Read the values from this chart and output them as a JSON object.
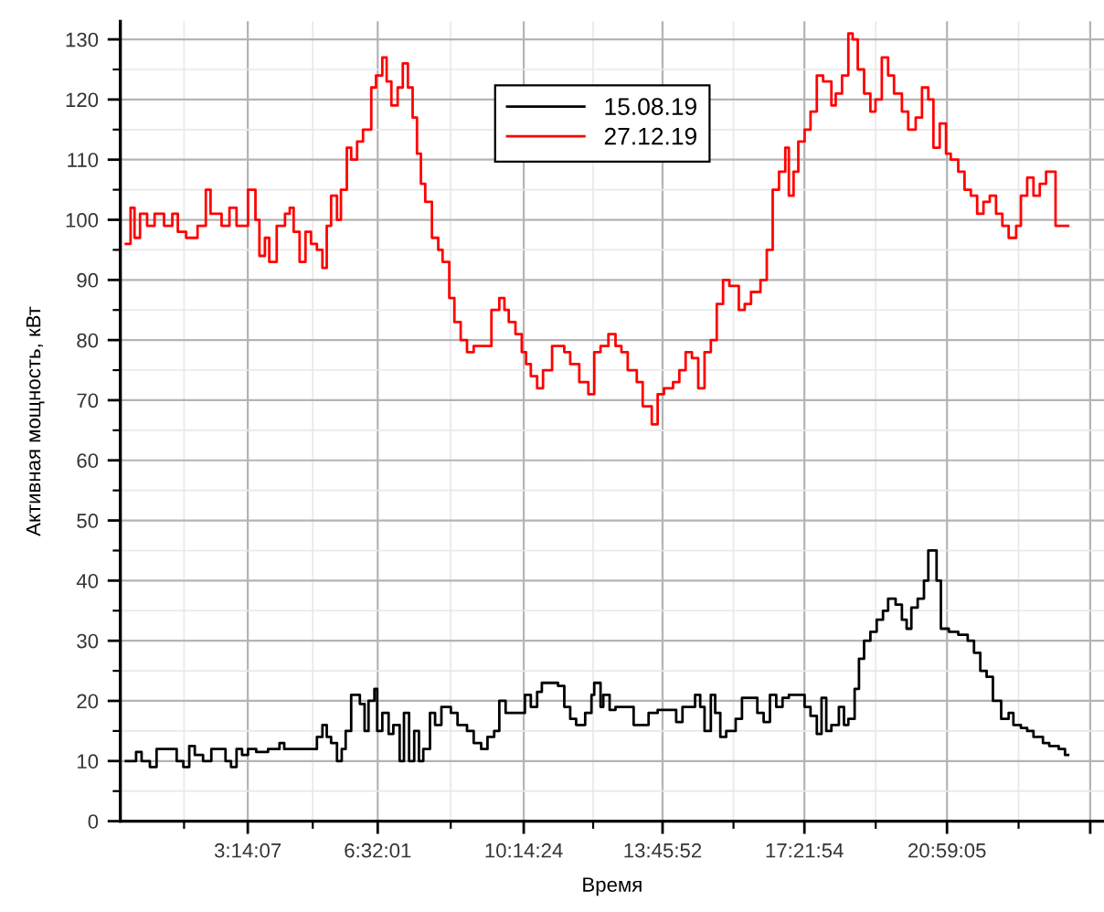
{
  "chart_data": {
    "type": "step",
    "xlabel": "Время",
    "ylabel": "Активная мощность, кВт",
    "xlim": [
      0,
      24.97
    ],
    "ylim": [
      0,
      133
    ],
    "xticks": [
      {
        "value": 3.2353,
        "label": "3:14:07"
      },
      {
        "value": 6.5336,
        "label": "6:32:01"
      },
      {
        "value": 10.24,
        "label": "10:14:24"
      },
      {
        "value": 13.7644,
        "label": "13:45:52"
      },
      {
        "value": 17.365,
        "label": "17:21:54"
      },
      {
        "value": 20.9847,
        "label": "20:59:05"
      },
      {
        "value": 24.62,
        "label": null
      }
    ],
    "yticks": [
      0,
      10,
      20,
      30,
      40,
      50,
      60,
      70,
      80,
      90,
      100,
      110,
      120,
      130
    ],
    "grid": true,
    "legend": "top",
    "series": [
      {
        "name": "15.08.19",
        "color": "#000000",
        "x": [
          0.14,
          0.4,
          0.54,
          0.75,
          0.92,
          1.43,
          1.6,
          1.75,
          1.89,
          2.1,
          2.31,
          2.67,
          2.81,
          2.95,
          3.09,
          3.24,
          3.45,
          3.75,
          4.04,
          4.16,
          4.99,
          5.13,
          5.24,
          5.35,
          5.5,
          5.62,
          5.72,
          5.86,
          6.08,
          6.2,
          6.3,
          6.45,
          6.52,
          6.65,
          6.81,
          6.93,
          7.09,
          7.2,
          7.33,
          7.46,
          7.58,
          7.69,
          7.86,
          7.99,
          8.15,
          8.39,
          8.56,
          8.8,
          8.97,
          9.16,
          9.32,
          9.49,
          9.62,
          9.78,
          10.27,
          10.42,
          10.58,
          10.7,
          11.11,
          11.27,
          11.42,
          11.57,
          11.8,
          11.96,
          12.03,
          12.19,
          12.26,
          12.42,
          12.57,
          13.03,
          13.41,
          13.64,
          14.11,
          14.27,
          14.59,
          14.72,
          14.83,
          14.99,
          15.1,
          15.23,
          15.38,
          15.62,
          15.78,
          16.17,
          16.33,
          16.49,
          16.65,
          16.81,
          16.97,
          17.37,
          17.52,
          17.68,
          17.8,
          17.92,
          18.05,
          18.24,
          18.37,
          18.48,
          18.64,
          18.75,
          18.88,
          19.04,
          19.2,
          19.36,
          19.49,
          19.68,
          19.84,
          19.96,
          20.08,
          20.24,
          20.4,
          20.51,
          20.72,
          20.83,
          21.03,
          21.27,
          21.51,
          21.67,
          21.83,
          21.99,
          22.15,
          22.36,
          22.55,
          22.67,
          22.86,
          23.02,
          23.18,
          23.42,
          23.58,
          23.82,
          23.98,
          24.06
        ],
        "values": [
          10,
          11.5,
          10,
          9,
          12,
          10,
          9,
          12.5,
          11,
          10,
          12,
          10,
          9,
          12,
          11,
          12,
          11.5,
          12,
          13,
          12,
          14,
          16,
          14,
          13,
          10,
          12,
          15,
          21,
          19.5,
          15,
          20,
          22,
          15,
          18,
          14.5,
          16,
          10,
          18,
          10,
          15,
          10,
          12,
          18,
          16,
          19,
          18,
          16,
          15,
          13,
          12,
          14,
          15,
          20,
          18,
          21,
          19,
          21.5,
          23,
          22.5,
          19,
          17,
          16,
          18,
          21,
          23,
          19,
          21,
          18.5,
          19,
          16,
          18,
          18.5,
          16.5,
          19,
          21,
          19,
          15,
          21,
          18,
          14,
          15,
          17,
          20.5,
          18,
          16.5,
          21,
          19,
          20.5,
          21,
          19,
          17.5,
          14.5,
          20.5,
          15,
          16,
          19,
          16,
          17,
          22,
          27,
          30,
          31.5,
          33.5,
          35,
          37,
          36,
          33.5,
          32,
          35.5,
          37,
          40,
          45,
          40,
          32,
          31.5,
          31,
          30,
          28,
          25,
          24,
          20,
          17,
          18,
          16,
          15.5,
          15,
          14,
          13,
          12.5,
          12,
          11,
          11
        ]
      },
      {
        "name": "27.12.19",
        "color": "#ff0000",
        "x": [
          0.14,
          0.26,
          0.36,
          0.5,
          0.68,
          0.87,
          1.11,
          1.32,
          1.46,
          1.67,
          1.96,
          2.17,
          2.29,
          2.57,
          2.77,
          2.95,
          3.24,
          3.43,
          3.53,
          3.67,
          3.78,
          3.97,
          4.18,
          4.3,
          4.4,
          4.55,
          4.7,
          4.84,
          4.99,
          5.13,
          5.24,
          5.35,
          5.5,
          5.6,
          5.75,
          5.86,
          6.01,
          6.16,
          6.37,
          6.49,
          6.65,
          6.76,
          6.88,
          7.04,
          7.17,
          7.3,
          7.42,
          7.53,
          7.63,
          7.74,
          7.91,
          8.07,
          8.18,
          8.35,
          8.48,
          8.64,
          8.8,
          8.97,
          9.42,
          9.62,
          9.75,
          9.86,
          10.03,
          10.19,
          10.3,
          10.42,
          10.58,
          10.73,
          10.96,
          11.27,
          11.42,
          11.65,
          11.88,
          12.03,
          12.19,
          12.39,
          12.57,
          12.72,
          12.88,
          13.11,
          13.26,
          13.49,
          13.64,
          13.8,
          14.03,
          14.19,
          14.35,
          14.51,
          14.67,
          14.83,
          14.99,
          15.14,
          15.3,
          15.46,
          15.7,
          15.85,
          16.01,
          16.25,
          16.41,
          16.56,
          16.72,
          16.88,
          16.97,
          17.09,
          17.21,
          17.37,
          17.52,
          17.68,
          17.84,
          18.05,
          18.16,
          18.32,
          18.48,
          18.59,
          18.72,
          18.88,
          19.04,
          19.17,
          19.33,
          19.49,
          19.64,
          19.84,
          20.0,
          20.19,
          20.35,
          20.51,
          20.64,
          20.8,
          20.96,
          21.08,
          21.27,
          21.43,
          21.59,
          21.75,
          21.91,
          22.07,
          22.23,
          22.39,
          22.55,
          22.74,
          22.86,
          23.02,
          23.18,
          23.34,
          23.5,
          23.74,
          24.06
        ],
        "values": [
          96,
          102,
          97,
          101,
          99,
          101,
          99,
          101,
          98,
          97,
          99,
          105,
          101,
          99,
          102,
          99,
          105,
          100,
          94,
          97,
          93,
          99,
          101,
          102,
          98,
          93,
          98,
          96,
          95,
          92,
          99,
          104,
          100,
          105,
          112,
          110,
          113,
          115,
          122,
          124,
          127,
          123,
          119,
          122,
          126,
          122,
          117,
          111,
          106,
          103,
          97,
          95,
          93,
          87,
          83,
          80,
          78,
          79,
          85,
          87,
          85,
          83,
          81,
          78,
          76,
          74,
          72,
          75,
          79,
          78,
          76,
          73,
          71,
          78,
          79,
          81,
          79,
          78,
          75,
          73,
          69,
          66,
          71,
          72,
          73,
          75,
          78,
          77,
          72,
          78,
          80,
          86,
          90,
          89,
          85,
          86,
          88,
          90,
          95,
          105,
          108,
          112,
          104,
          108,
          113,
          115,
          118,
          124,
          123,
          119,
          121,
          124,
          131,
          130,
          125,
          121,
          118,
          120,
          127,
          124,
          121,
          118,
          115,
          117,
          122,
          120,
          112,
          116,
          111,
          110,
          108,
          105,
          104,
          101,
          103,
          104,
          101,
          99,
          97,
          99,
          104,
          107,
          104,
          106,
          108,
          99,
          99
        ]
      }
    ]
  }
}
